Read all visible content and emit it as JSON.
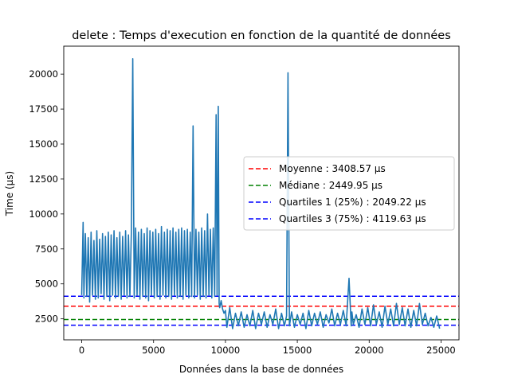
{
  "chart_data": {
    "type": "line",
    "title": "delete : Temps d'execution en fonction de la quantité de données",
    "xlabel": "Données dans la base de données",
    "ylabel": "Time (µs)",
    "xlim": [
      -1250,
      26250
    ],
    "ylim": [
      1000,
      22000
    ],
    "xticks": [
      0,
      5000,
      10000,
      15000,
      20000,
      25000
    ],
    "yticks": [
      2500,
      5000,
      7500,
      10000,
      12500,
      15000,
      17500,
      20000
    ],
    "grid": false,
    "legend_position": "center-right",
    "series": [
      {
        "color": "#1f77b4",
        "x": [
          0,
          100,
          150,
          250,
          350,
          450,
          550,
          650,
          750,
          850,
          950,
          1050,
          1150,
          1250,
          1350,
          1450,
          1550,
          1650,
          1750,
          1850,
          1950,
          2050,
          2150,
          2250,
          2350,
          2450,
          2550,
          2650,
          2750,
          2850,
          2950,
          3050,
          3150,
          3250,
          3350,
          3450,
          3550,
          3650,
          3750,
          3850,
          3950,
          4050,
          4150,
          4250,
          4350,
          4450,
          4550,
          4650,
          4750,
          4850,
          4950,
          5050,
          5150,
          5250,
          5350,
          5450,
          5550,
          5650,
          5750,
          5850,
          5950,
          6050,
          6150,
          6250,
          6350,
          6450,
          6550,
          6650,
          6750,
          6850,
          6950,
          7050,
          7150,
          7250,
          7350,
          7450,
          7550,
          7650,
          7750,
          7850,
          7950,
          8050,
          8150,
          8250,
          8350,
          8450,
          8550,
          8650,
          8750,
          8850,
          8950,
          9050,
          9150,
          9250,
          9350,
          9420,
          9500,
          9560,
          9600,
          9700,
          9800,
          9900,
          10000,
          10100,
          10300,
          10500,
          10700,
          10900,
          11100,
          11300,
          11500,
          11700,
          11900,
          12100,
          12300,
          12500,
          12700,
          12900,
          13100,
          13300,
          13500,
          13700,
          13900,
          14100,
          14250,
          14350,
          14450,
          14600,
          14800,
          15000,
          15200,
          15400,
          15600,
          15800,
          16000,
          16200,
          16400,
          16600,
          16800,
          17000,
          17200,
          17400,
          17600,
          17800,
          18000,
          18200,
          18400,
          18600,
          18750,
          18800,
          18900,
          19100,
          19300,
          19500,
          19700,
          19900,
          20100,
          20300,
          20500,
          20700,
          20900,
          21100,
          21300,
          21500,
          21700,
          21900,
          22100,
          22300,
          22500,
          22700,
          22900,
          23100,
          23300,
          23500,
          23700,
          23900,
          24100,
          24300,
          24500,
          24700,
          24900
        ],
        "y": [
          4200,
          9400,
          4000,
          8600,
          4100,
          8300,
          3700,
          8700,
          4200,
          8100,
          3900,
          8800,
          4000,
          8200,
          4300,
          8600,
          3900,
          8400,
          4100,
          8700,
          3800,
          8500,
          4200,
          8800,
          4000,
          8300,
          4100,
          8700,
          3900,
          8400,
          4200,
          8800,
          4000,
          8500,
          4100,
          8600,
          21100,
          4000,
          9000,
          4200,
          8700,
          3900,
          8900,
          4100,
          8600,
          4000,
          9000,
          3800,
          8800,
          4200,
          8700,
          4000,
          8900,
          4100,
          8600,
          3900,
          9100,
          4200,
          8700,
          4000,
          8900,
          4100,
          8800,
          3900,
          9000,
          4200,
          8700,
          4000,
          8900,
          4100,
          9000,
          3900,
          8800,
          4200,
          8900,
          4000,
          8700,
          4100,
          16300,
          4000,
          8900,
          4200,
          8700,
          3900,
          9000,
          4100,
          8800,
          4000,
          10000,
          4200,
          8900,
          4000,
          9000,
          4100,
          17100,
          4200,
          17700,
          3600,
          3300,
          3800,
          3200,
          2900,
          3100,
          1900,
          3300,
          1800,
          2900,
          2000,
          3000,
          1900,
          2800,
          2000,
          3100,
          1800,
          2900,
          2100,
          3000,
          1900,
          2800,
          2100,
          3200,
          1800,
          2900,
          2000,
          2700,
          20100,
          2000,
          3000,
          1900,
          2800,
          2100,
          2900,
          1800,
          3100,
          2000,
          2900,
          2100,
          3000,
          1900,
          2800,
          2200,
          3200,
          2000,
          2900,
          2100,
          3100,
          2000,
          5400,
          2000,
          3000,
          2100,
          2800,
          1900,
          3200,
          2100,
          3300,
          2000,
          3500,
          2100,
          3000,
          1900,
          3400,
          2100,
          3200,
          2000,
          3600,
          2100,
          3300,
          2000,
          3200,
          1900,
          3100,
          2000,
          3600,
          2100,
          2900,
          2000,
          2600,
          1900,
          2700,
          1800
        ]
      }
    ],
    "hlines": [
      {
        "label": "Moyenne : 3408.57 µs",
        "value": 3408.57,
        "color": "#ff0000"
      },
      {
        "label": "Médiane : 2449.95 µs",
        "value": 2449.95,
        "color": "#008000"
      },
      {
        "label": "Quartiles 1 (25%) : 2049.22 µs",
        "value": 2049.22,
        "color": "#0000ff"
      },
      {
        "label": "Quartiles 3 (75%) : 4119.63 µs",
        "value": 4119.63,
        "color": "#0000ff"
      }
    ]
  }
}
